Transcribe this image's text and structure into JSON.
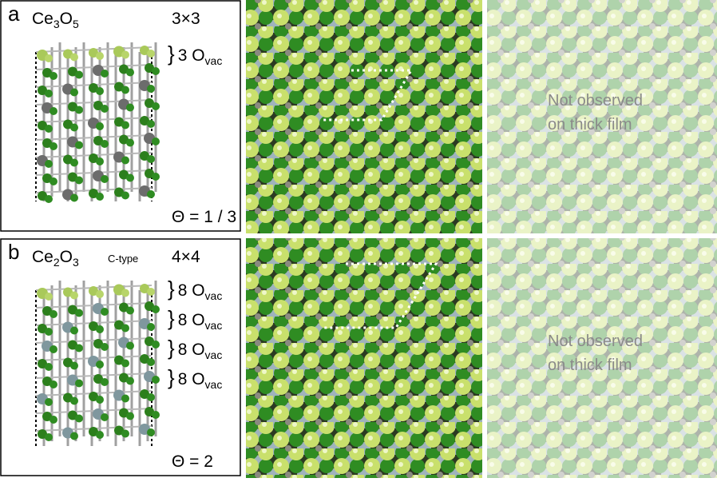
{
  "panels": [
    {
      "letter": "a",
      "formula": [
        "Ce",
        "3",
        "O",
        "5"
      ],
      "supercell": "3×3",
      "vacancies": [
        {
          "brace": "}",
          "count": "3 O",
          "sub": "vac"
        }
      ],
      "theta": "Θ = 1 / 3",
      "note": [
        "Not observed",
        "on  thick film"
      ]
    },
    {
      "letter": "b",
      "formula": [
        "Ce",
        "2",
        "O",
        "3"
      ],
      "phase": "C-type",
      "supercell": "4×4",
      "vacancies": [
        {
          "brace": "}",
          "count": "8 O",
          "sub": "vac"
        },
        {
          "brace": "}",
          "count": "8 O",
          "sub": "vac"
        },
        {
          "brace": "}",
          "count": "8 O",
          "sub": "vac"
        },
        {
          "brace": "}",
          "count": "8 O",
          "sub": "vac"
        }
      ],
      "theta": "Θ = 2",
      "note": [
        "Not observed",
        "on thick film"
      ]
    }
  ]
}
